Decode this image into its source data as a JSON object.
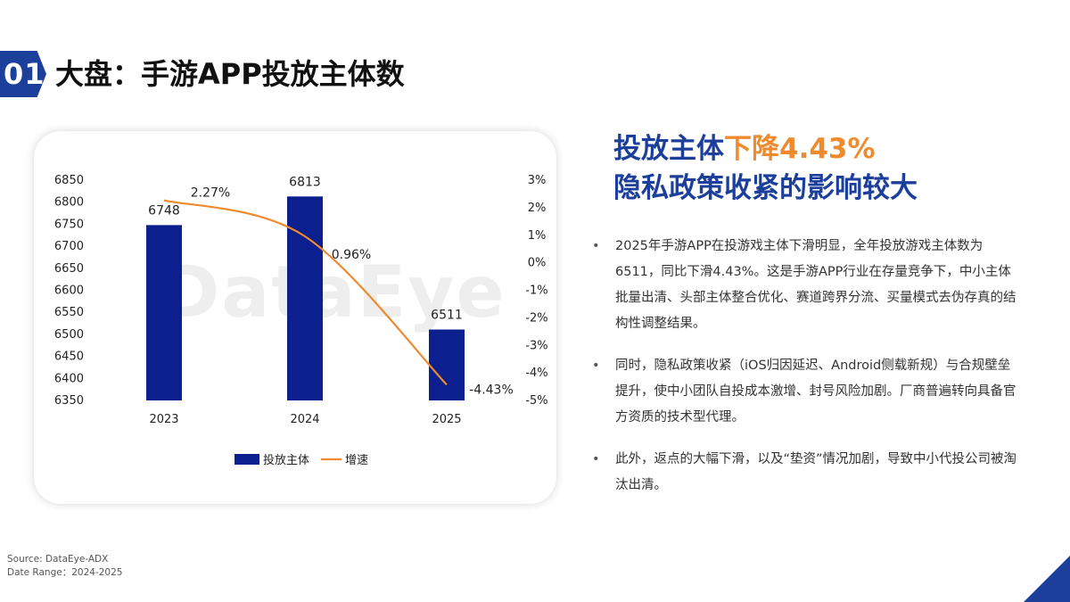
{
  "header": {
    "section_number": "01",
    "title": "大盘：手游APP投放主体数"
  },
  "headline": {
    "line1_prefix": "投放主体",
    "line1_accent": "下降4.43%",
    "line2": "隐私政策收紧的影响较大"
  },
  "bullets": [
    "2025年手游APP在投游戏主体下滑明显，全年投放游戏主体数为6511，同比下滑4.43%。这是手游APP行业在存量竞争下，中小主体批量出清、头部主体整合优化、赛道跨界分流、买量模式去伪存真的结构性调整结果。",
    "同时，隐私政策收紧（iOS归因延迟、Android侧载新规）与合规壁垒提升，使中小团队自投成本激增、封号风险加剧。厂商普遍转向具备官方资质的技术型代理。",
    "此外，返点的大幅下滑，以及“垫资”情况加剧，导致中小代投公司被淘汰出清。"
  ],
  "watermark": "DataEye",
  "source": {
    "line1": "Source: DataEye-ADX",
    "line2": "Date Range：2024-2025"
  },
  "colors": {
    "bar": "#0c1f8f",
    "line": "#f08a2e",
    "brand": "#1d3f9c"
  },
  "chart_data": {
    "type": "bar",
    "categories": [
      "2023",
      "2024",
      "2025"
    ],
    "series": [
      {
        "name": "投放主体",
        "type": "bar",
        "axis": "left",
        "values": [
          6748,
          6813,
          6511
        ],
        "labels": [
          "6748",
          "6813",
          "6511"
        ]
      },
      {
        "name": "增速",
        "type": "line",
        "axis": "right",
        "values": [
          2.27,
          0.96,
          -4.43
        ],
        "labels": [
          "2.27%",
          "0.96%",
          "-4.43%"
        ]
      }
    ],
    "left_axis": {
      "min": 6350,
      "max": 6850,
      "ticks": [
        "6850",
        "6800",
        "6750",
        "6700",
        "6650",
        "6600",
        "6550",
        "6500",
        "6450",
        "6400",
        "6350"
      ]
    },
    "right_axis": {
      "min": -5,
      "max": 3,
      "ticks": [
        "3%",
        "2%",
        "1%",
        "0%",
        "-1%",
        "-2%",
        "-3%",
        "-4%",
        "-5%"
      ]
    },
    "legend_position": "bottom",
    "grid": false
  }
}
